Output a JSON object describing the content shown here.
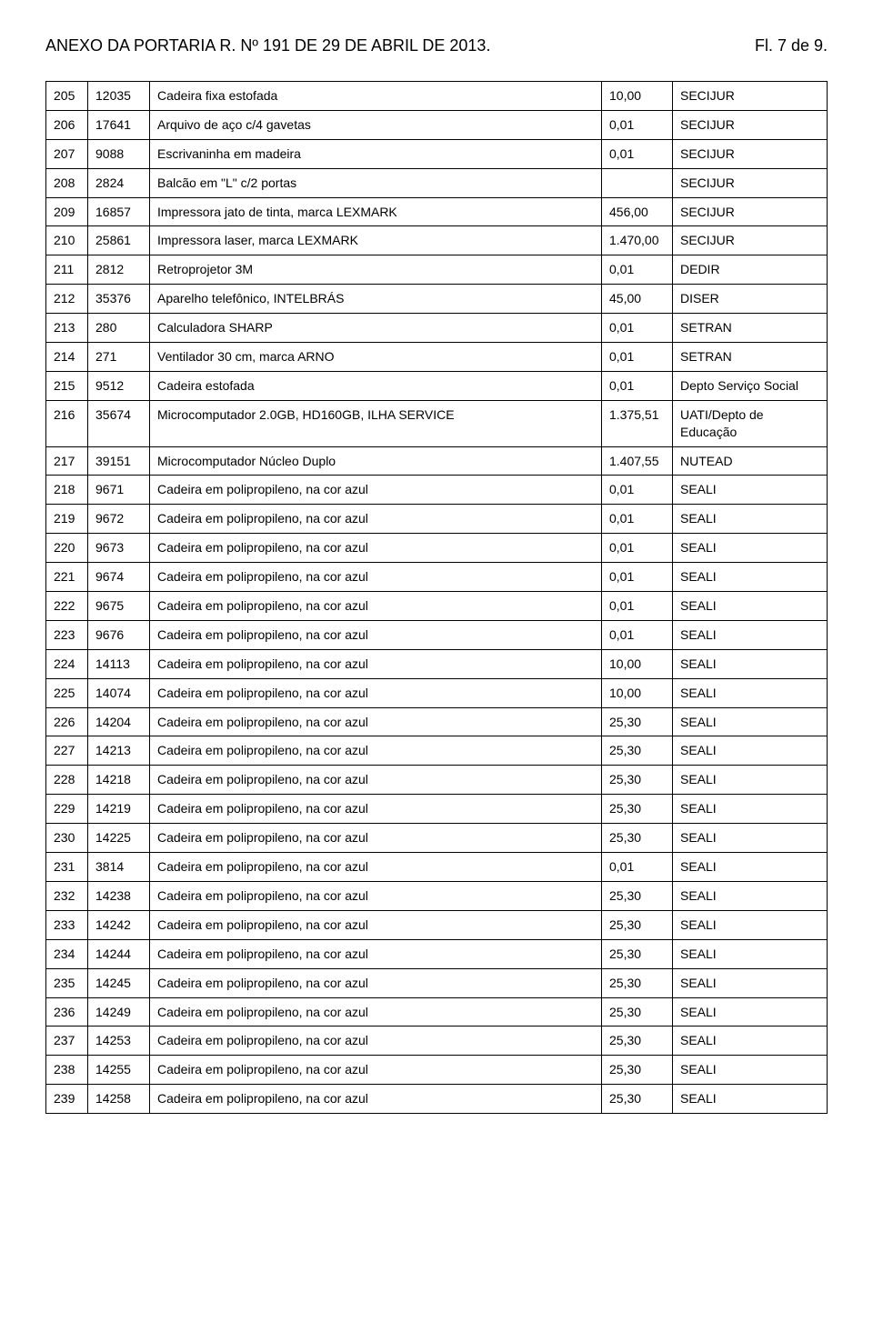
{
  "header": {
    "title": "ANEXO DA PORTARIA R. Nº 191 DE 29 DE ABRIL DE 2013.",
    "page": "Fl. 7 de 9."
  },
  "table": {
    "col_widths": [
      "46px",
      "68px",
      "auto",
      "78px",
      "170px"
    ],
    "rows": [
      [
        "205",
        "12035",
        "Cadeira  fixa estofada",
        "10,00",
        "SECIJUR"
      ],
      [
        "206",
        "17641",
        "Arquivo de aço c/4 gavetas",
        "0,01",
        "SECIJUR"
      ],
      [
        "207",
        "9088",
        "Escrivaninha em madeira",
        "0,01",
        "SECIJUR"
      ],
      [
        "208",
        "2824",
        "Balcão em \"L\" c/2 portas",
        "",
        "SECIJUR"
      ],
      [
        "209",
        "16857",
        "Impressora jato de tinta, marca LEXMARK",
        "456,00",
        "SECIJUR"
      ],
      [
        "210",
        "25861",
        "Impressora laser, marca LEXMARK",
        "1.470,00",
        "SECIJUR"
      ],
      [
        "211",
        "2812",
        "Retroprojetor 3M",
        "0,01",
        "DEDIR"
      ],
      [
        "212",
        "35376",
        "Aparelho telefônico, INTELBRÁS",
        "45,00",
        "DISER"
      ],
      [
        "213",
        "280",
        "Calculadora SHARP",
        "0,01",
        "SETRAN"
      ],
      [
        "214",
        "271",
        "Ventilador 30 cm, marca ARNO",
        "0,01",
        "SETRAN"
      ],
      [
        "215",
        "9512",
        "Cadeira estofada",
        "0,01",
        "Depto Serviço Social"
      ],
      [
        "216",
        "35674",
        "Microcomputador 2.0GB, HD160GB, ILHA SERVICE",
        "1.375,51",
        "UATI/Depto de Educação"
      ],
      [
        "217",
        "39151",
        "Microcomputador Núcleo Duplo",
        "1.407,55",
        "NUTEAD"
      ],
      [
        "218",
        "9671",
        "Cadeira em polipropileno, na cor azul",
        "0,01",
        "SEALI"
      ],
      [
        "219",
        "9672",
        "Cadeira em polipropileno, na cor azul",
        "0,01",
        "SEALI"
      ],
      [
        "220",
        "9673",
        "Cadeira em polipropileno, na cor azul",
        "0,01",
        "SEALI"
      ],
      [
        "221",
        "9674",
        "Cadeira em polipropileno, na cor azul",
        "0,01",
        "SEALI"
      ],
      [
        "222",
        "9675",
        "Cadeira em polipropileno, na cor azul",
        "0,01",
        "SEALI"
      ],
      [
        "223",
        "9676",
        "Cadeira em polipropileno, na cor azul",
        "0,01",
        "SEALI"
      ],
      [
        "224",
        "14113",
        "Cadeira em polipropileno, na cor azul",
        "10,00",
        "SEALI"
      ],
      [
        "225",
        "14074",
        "Cadeira em polipropileno, na cor azul",
        "10,00",
        "SEALI"
      ],
      [
        "226",
        "14204",
        "Cadeira em polipropileno, na cor azul",
        "25,30",
        "SEALI"
      ],
      [
        "227",
        "14213",
        "Cadeira em polipropileno, na cor azul",
        "25,30",
        "SEALI"
      ],
      [
        "228",
        "14218",
        "Cadeira em polipropileno, na cor azul",
        "25,30",
        "SEALI"
      ],
      [
        "229",
        "14219",
        "Cadeira em polipropileno, na cor azul",
        "25,30",
        "SEALI"
      ],
      [
        "230",
        "14225",
        "Cadeira em polipropileno, na cor azul",
        "25,30",
        "SEALI"
      ],
      [
        "231",
        "3814",
        "Cadeira em polipropileno, na cor azul",
        "0,01",
        "SEALI"
      ],
      [
        "232",
        "14238",
        "Cadeira em polipropileno, na cor azul",
        "25,30",
        "SEALI"
      ],
      [
        "233",
        "14242",
        "Cadeira em polipropileno, na cor azul",
        "25,30",
        "SEALI"
      ],
      [
        "234",
        "14244",
        "Cadeira em polipropileno, na cor azul",
        "25,30",
        "SEALI"
      ],
      [
        "235",
        "14245",
        "Cadeira em polipropileno, na cor azul",
        "25,30",
        "SEALI"
      ],
      [
        "236",
        "14249",
        "Cadeira em polipropileno, na cor azul",
        "25,30",
        "SEALI"
      ],
      [
        "237",
        "14253",
        "Cadeira em polipropileno, na cor azul",
        "25,30",
        "SEALI"
      ],
      [
        "238",
        "14255",
        "Cadeira em polipropileno, na cor azul",
        "25,30",
        "SEALI"
      ],
      [
        "239",
        "14258",
        "Cadeira em polipropileno, na cor azul",
        "25,30",
        "SEALI"
      ]
    ]
  }
}
